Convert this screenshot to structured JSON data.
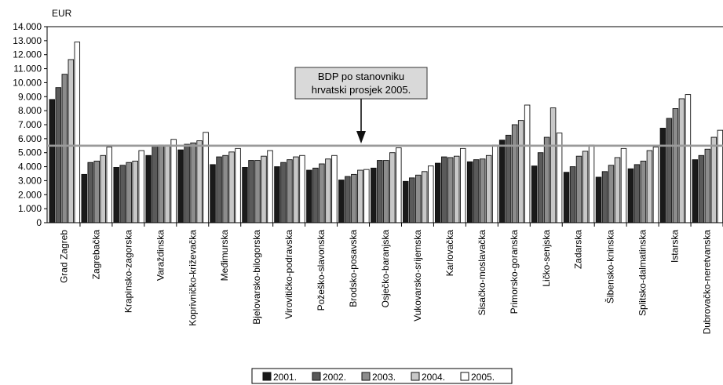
{
  "chart_data": {
    "type": "bar",
    "unit_label": "EUR",
    "ylim": [
      0,
      14000
    ],
    "yticks": [
      0,
      1000,
      2000,
      3000,
      4000,
      5000,
      6000,
      7000,
      8000,
      9000,
      10000,
      11000,
      12000,
      13000,
      14000
    ],
    "ytick_labels": [
      "0",
      "1.000",
      "2.000",
      "3.000",
      "4.000",
      "5.000",
      "6.000",
      "7.000",
      "8.000",
      "9.000",
      "10.000",
      "11.000",
      "12.000",
      "13.000",
      "14.000"
    ],
    "categories": [
      "Grad Zagreb",
      "Zagrebačka",
      "Krapinsko-zagorska",
      "Varaždinska",
      "Koprivničko-križevačka",
      "Međimurska",
      "Bjelovarsko-bilogorska",
      "Virovitičko-podravska",
      "Požeško-slavonska",
      "Brodsko-posavska",
      "Osječko-baranjska",
      "Vukovarsko-srijemska",
      "Karlovačka",
      "Sisačko-moslavačka",
      "Primorsko-goranska",
      "Ličko-senjska",
      "Zadarska",
      "Šibensko-kninska",
      "Splitsko-dalmatinska",
      "Istarska",
      "Dubrovačko-neretvanska"
    ],
    "series": [
      {
        "name": "2001.",
        "color": "#1a1a1a",
        "values": [
          8800,
          3450,
          3950,
          4800,
          5200,
          4150,
          3950,
          4000,
          3750,
          3050,
          3900,
          2950,
          4250,
          4350,
          5900,
          4050,
          3600,
          3250,
          3850,
          6750,
          4500
        ]
      },
      {
        "name": "2002.",
        "color": "#5a5a5a",
        "values": [
          9650,
          4300,
          4100,
          5500,
          5600,
          4700,
          4450,
          4300,
          3900,
          3300,
          4450,
          3200,
          4700,
          4500,
          6250,
          5000,
          4000,
          3650,
          4150,
          7450,
          4800
        ]
      },
      {
        "name": "2003.",
        "color": "#8c8c8c",
        "values": [
          10600,
          4400,
          4300,
          5550,
          5700,
          4800,
          4450,
          4500,
          4200,
          3450,
          4450,
          3400,
          4650,
          4550,
          7000,
          6100,
          4750,
          4100,
          4400,
          8150,
          5250
        ]
      },
      {
        "name": "2004.",
        "color": "#c8c8c8",
        "values": [
          11650,
          4800,
          4400,
          5550,
          5850,
          5050,
          4750,
          4700,
          4550,
          3750,
          5000,
          3650,
          4750,
          4800,
          7300,
          8200,
          5100,
          4650,
          5150,
          8850,
          6100
        ]
      },
      {
        "name": "2005.",
        "color": "#ffffff",
        "values": [
          12900,
          5400,
          5150,
          5950,
          6450,
          5300,
          5150,
          4800,
          4800,
          3800,
          5350,
          4050,
          5300,
          5550,
          8400,
          6400,
          5550,
          5300,
          5400,
          9150,
          6600
        ]
      }
    ],
    "reference_line": {
      "value": 5500,
      "label_lines": [
        "BDP po stanovniku",
        "hrvatski prosjek 2005."
      ]
    },
    "legend_position": "bottom-center",
    "grid": false
  }
}
